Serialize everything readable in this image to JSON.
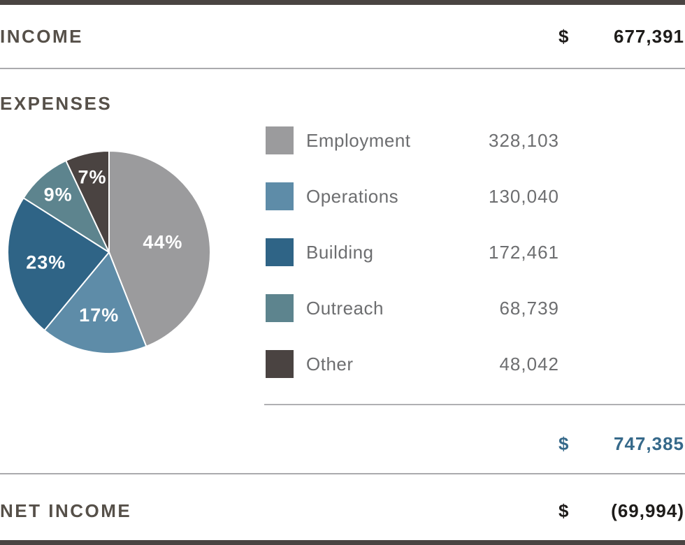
{
  "income": {
    "label": "INCOME",
    "currency": "$",
    "amount": "677,391"
  },
  "expenses": {
    "label": "EXPENSES",
    "items": [
      {
        "name": "Employment",
        "amount": "328,103"
      },
      {
        "name": "Operations",
        "amount": "130,040"
      },
      {
        "name": "Building",
        "amount": "172,461"
      },
      {
        "name": "Outreach",
        "amount": "68,739"
      },
      {
        "name": "Other",
        "amount": "48,042"
      }
    ],
    "total": {
      "currency": "$",
      "amount": "747,385"
    }
  },
  "net_income": {
    "label": "NET INCOME",
    "currency": "$",
    "amount": "(69,994)"
  },
  "colors": {
    "accent_blue": "#36698a",
    "border_bar": "#4a4442",
    "heading_text": "#565049",
    "legend_text": "#6d6e70",
    "amount_text": "#1e1c1a",
    "divider": "#aaaaad"
  },
  "chart_data": {
    "type": "pie",
    "title": "",
    "labels": [
      "Employment",
      "Operations",
      "Building",
      "Outreach",
      "Other"
    ],
    "values": [
      328103,
      130040,
      172461,
      68739,
      48042
    ],
    "percentages": [
      44,
      17,
      23,
      9,
      7
    ],
    "slice_labels": [
      "44%",
      "17%",
      "23%",
      "9%",
      "7%"
    ],
    "colors": [
      "#9b9b9d",
      "#5e8ca8",
      "#2f6486",
      "#5d848e",
      "#4a4341"
    ],
    "slice_label_color": "#ffffff",
    "start_angle_deg": 0,
    "direction": "clockwise",
    "legend_position": "right",
    "total": 747385
  }
}
